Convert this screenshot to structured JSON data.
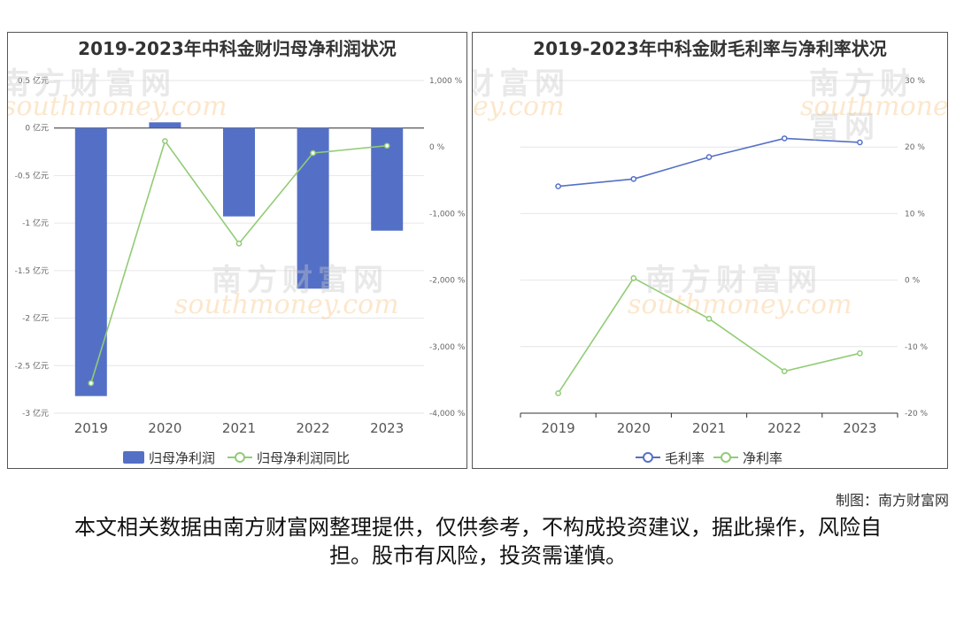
{
  "chart_data": [
    {
      "type": "bar",
      "title": "2019-2023年中科金财归母净利润状况",
      "categories": [
        "2019",
        "2020",
        "2021",
        "2022",
        "2023"
      ],
      "series": [
        {
          "name": "归母净利润",
          "kind": "bar",
          "axis": "left",
          "color": "#5470c6",
          "values": [
            -2.82,
            0.06,
            -0.93,
            -1.69,
            -1.08
          ]
        },
        {
          "name": "归母净利润同比",
          "kind": "line",
          "axis": "right",
          "color": "#91cc75",
          "values": [
            -3550,
            90,
            -1450,
            -90,
            20
          ]
        }
      ],
      "left_axis": {
        "min": -3,
        "max": 0.5,
        "step": 0.5,
        "unit": "亿元",
        "tick_labels": [
          "0.5 亿元",
          "0 亿元",
          "-0.5 亿元",
          "-1 亿元",
          "-1.5 亿元",
          "-2 亿元",
          "-2.5 亿元",
          "-3 亿元"
        ]
      },
      "right_axis": {
        "min": -4000,
        "max": 1000,
        "step": 1000,
        "unit": "%",
        "tick_labels": [
          "1,000 %",
          "0 %",
          "-1,000 %",
          "-2,000 %",
          "-3,000 %",
          "-4,000 %"
        ]
      },
      "grid": true,
      "legend_position": "bottom"
    },
    {
      "type": "line",
      "title": "2019-2023年中科金财毛利率与净利率状况",
      "categories": [
        "2019",
        "2020",
        "2021",
        "2022",
        "2023"
      ],
      "series": [
        {
          "name": "毛利率",
          "color": "#5470c6",
          "values": [
            14.1,
            15.2,
            18.5,
            21.3,
            20.7
          ]
        },
        {
          "name": "净利率",
          "color": "#91cc75",
          "values": [
            -17.0,
            0.3,
            -5.8,
            -13.7,
            -11.0
          ]
        }
      ],
      "right_axis": {
        "min": -20,
        "max": 30,
        "step": 10,
        "unit": "%",
        "tick_labels": [
          "30 %",
          "20 %",
          "10 %",
          "0 %",
          "-10 %",
          "-20 %"
        ]
      },
      "grid": true,
      "legend_position": "bottom"
    }
  ],
  "watermark": {
    "name": "南方财富网",
    "site": "southmoney.com"
  },
  "footer": {
    "credit": "制图：南方财富网",
    "disclaimer": "本文相关数据由南方财富网整理提供，仅供参考，不构成投资建议，据此操作，风险自担。股市有风险，投资需谨慎。"
  }
}
